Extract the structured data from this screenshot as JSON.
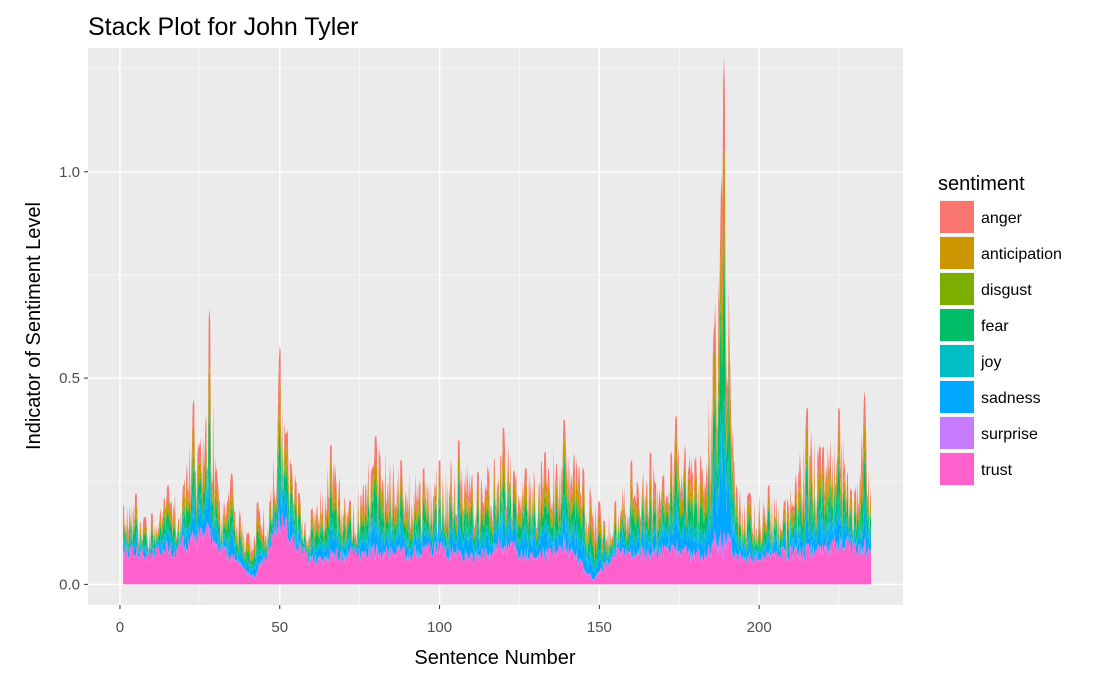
{
  "chart_data": {
    "type": "area",
    "stacked": true,
    "title": "Stack Plot for John Tyler",
    "xlabel": "Sentence Number",
    "ylabel": "Indicator of Sentiment Level",
    "xlim": [
      -10,
      245
    ],
    "ylim": [
      -0.05,
      1.3
    ],
    "x_ticks": [
      0,
      50,
      100,
      150,
      200
    ],
    "x_tick_labels": [
      "0",
      "50",
      "100",
      "150",
      "200"
    ],
    "y_ticks": [
      0.0,
      0.5,
      1.0
    ],
    "y_tick_labels": [
      "0.0",
      "0.5",
      "1.0"
    ],
    "grid": true,
    "background": "#ebebeb",
    "legend": {
      "title": "sentiment",
      "placement": "right",
      "entries": [
        {
          "label": "anger",
          "color": "#F8766D"
        },
        {
          "label": "anticipation",
          "color": "#CD9600"
        },
        {
          "label": "disgust",
          "color": "#7CAE00"
        },
        {
          "label": "fear",
          "color": "#00BE67"
        },
        {
          "label": "joy",
          "color": "#00BFC4"
        },
        {
          "label": "sadness",
          "color": "#00A9FF"
        },
        {
          "label": "surprise",
          "color": "#C77CFF"
        },
        {
          "label": "trust",
          "color": "#FF61CC"
        }
      ]
    },
    "stack_order_bottom_to_top": [
      "trust",
      "surprise",
      "sadness",
      "joy",
      "fear",
      "disgust",
      "anticipation",
      "anger"
    ],
    "x_range": [
      1,
      235
    ],
    "total_envelope_peaks": [
      [
        1,
        0.19
      ],
      [
        5,
        0.22
      ],
      [
        10,
        0.17
      ],
      [
        15,
        0.24
      ],
      [
        20,
        0.24
      ],
      [
        23,
        0.45
      ],
      [
        25,
        0.33
      ],
      [
        28,
        0.67
      ],
      [
        31,
        0.2
      ],
      [
        35,
        0.27
      ],
      [
        40,
        0.12
      ],
      [
        43,
        0.2
      ],
      [
        47,
        0.2
      ],
      [
        50,
        0.58
      ],
      [
        55,
        0.25
      ],
      [
        60,
        0.18
      ],
      [
        66,
        0.34
      ],
      [
        72,
        0.2
      ],
      [
        80,
        0.36
      ],
      [
        88,
        0.3
      ],
      [
        95,
        0.28
      ],
      [
        100,
        0.3
      ],
      [
        106,
        0.35
      ],
      [
        112,
        0.27
      ],
      [
        120,
        0.38
      ],
      [
        127,
        0.28
      ],
      [
        133,
        0.32
      ],
      [
        139,
        0.4
      ],
      [
        145,
        0.28
      ],
      [
        150,
        0.2
      ],
      [
        155,
        0.2
      ],
      [
        160,
        0.3
      ],
      [
        166,
        0.32
      ],
      [
        170,
        0.26
      ],
      [
        174,
        0.41
      ],
      [
        180,
        0.3
      ],
      [
        186,
        0.63
      ],
      [
        189,
        1.28
      ],
      [
        192,
        0.3
      ],
      [
        197,
        0.22
      ],
      [
        203,
        0.24
      ],
      [
        208,
        0.2
      ],
      [
        215,
        0.43
      ],
      [
        220,
        0.33
      ],
      [
        225,
        0.43
      ],
      [
        230,
        0.22
      ],
      [
        233,
        0.47
      ],
      [
        235,
        0.2
      ]
    ],
    "trust_envelope_peaks": [
      [
        1,
        0.1
      ],
      [
        10,
        0.09
      ],
      [
        20,
        0.12
      ],
      [
        28,
        0.15
      ],
      [
        35,
        0.08
      ],
      [
        42,
        0.02
      ],
      [
        50,
        0.19
      ],
      [
        60,
        0.07
      ],
      [
        70,
        0.09
      ],
      [
        80,
        0.1
      ],
      [
        90,
        0.09
      ],
      [
        100,
        0.11
      ],
      [
        110,
        0.08
      ],
      [
        120,
        0.12
      ],
      [
        130,
        0.08
      ],
      [
        140,
        0.12
      ],
      [
        148,
        0.01
      ],
      [
        155,
        0.1
      ],
      [
        165,
        0.09
      ],
      [
        175,
        0.11
      ],
      [
        180,
        0.08
      ],
      [
        189,
        0.12
      ],
      [
        195,
        0.08
      ],
      [
        205,
        0.09
      ],
      [
        215,
        0.1
      ],
      [
        225,
        0.12
      ],
      [
        233,
        0.11
      ],
      [
        235,
        0.09
      ]
    ]
  }
}
